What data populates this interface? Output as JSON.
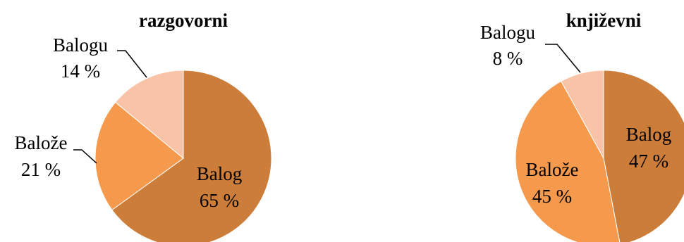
{
  "chart_data": [
    {
      "type": "pie",
      "title": "razgovorni",
      "slices": [
        {
          "name": "Balog",
          "value": 65,
          "value_label": "65 %",
          "color": "#CD7D3A"
        },
        {
          "name": "Balože",
          "value": 21,
          "value_label": "21 %",
          "color": "#F5994D"
        },
        {
          "name": "Balogu",
          "value": 14,
          "value_label": "14 %",
          "color": "#F8C3A7"
        }
      ],
      "legend": "none",
      "start_angle_deg": 0,
      "direction": "clockwise"
    },
    {
      "type": "pie",
      "title": "književni",
      "slices": [
        {
          "name": "Balog",
          "value": 47,
          "value_label": "47 %",
          "color": "#CD7D3A"
        },
        {
          "name": "Balože",
          "value": 45,
          "value_label": "45 %",
          "color": "#F5994D"
        },
        {
          "name": "Balogu",
          "value": 8,
          "value_label": "8 %",
          "color": "#F8C3A7"
        }
      ],
      "legend": "none",
      "start_angle_deg": 0,
      "direction": "clockwise"
    }
  ]
}
